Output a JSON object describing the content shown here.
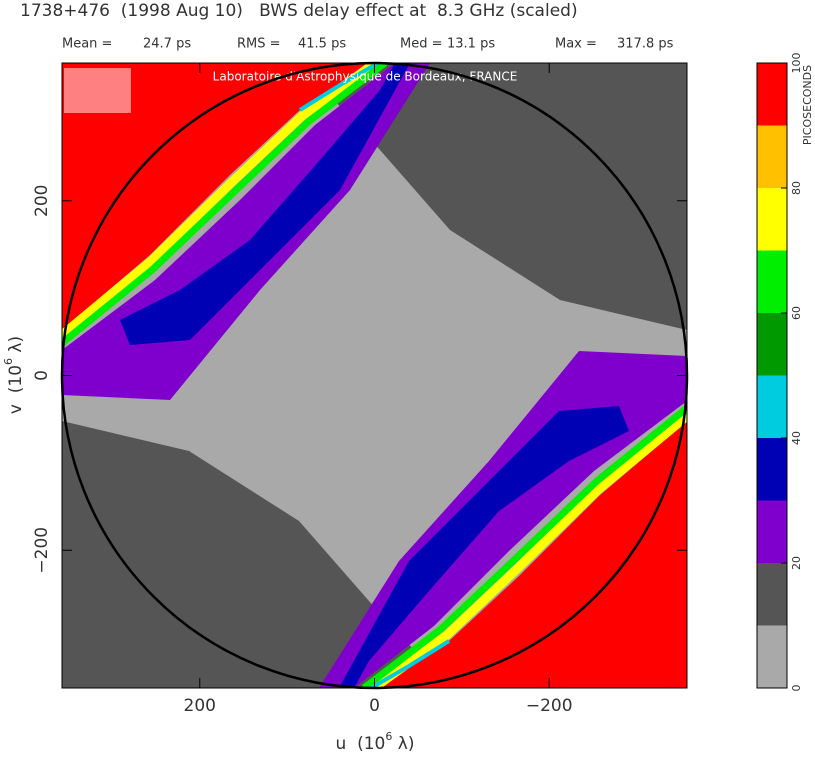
{
  "chart_data": {
    "type": "heatmap",
    "title": "1738+476  (1998 Aug 10)   BWS delay effect at  8.3 GHz (scaled)",
    "stats": [
      {
        "label": "Mean =",
        "value": "24.7 ps"
      },
      {
        "label": "RMS =",
        "value": "41.5 ps"
      },
      {
        "label": "Med =",
        "value": "13.1 ps"
      },
      {
        "label": "Max =",
        "value": "317.8 ps"
      }
    ],
    "annotation": "Laboratoire d'Astrophysique de Bordeaux, FRANCE",
    "x_label": [
      "u  (10",
      "6",
      " λ)"
    ],
    "y_label": [
      "v  (10",
      "6",
      " λ)"
    ],
    "xlim": [
      357.7,
      -357.7
    ],
    "ylim": [
      -357.7,
      357.7
    ],
    "xticks": [
      200,
      0,
      {
        "value": -200,
        "label": "−200"
      }
    ],
    "yticks": [
      200,
      0,
      {
        "value": -200,
        "label": "−200"
      }
    ],
    "colorbar": {
      "label": "PICOSECONDS",
      "levels": [
        0,
        10,
        20,
        30,
        40,
        50,
        60,
        70,
        80,
        90,
        100
      ],
      "colors": [
        "#a9a9a9",
        "#555555",
        "#7f00cc",
        "#0000b4",
        "#00cce0",
        "#009a00",
        "#00ee00",
        "#ffff00",
        "#ffc000",
        "#ff0000"
      ],
      "ticks": [
        0,
        20,
        40,
        60,
        80,
        100
      ]
    }
  }
}
